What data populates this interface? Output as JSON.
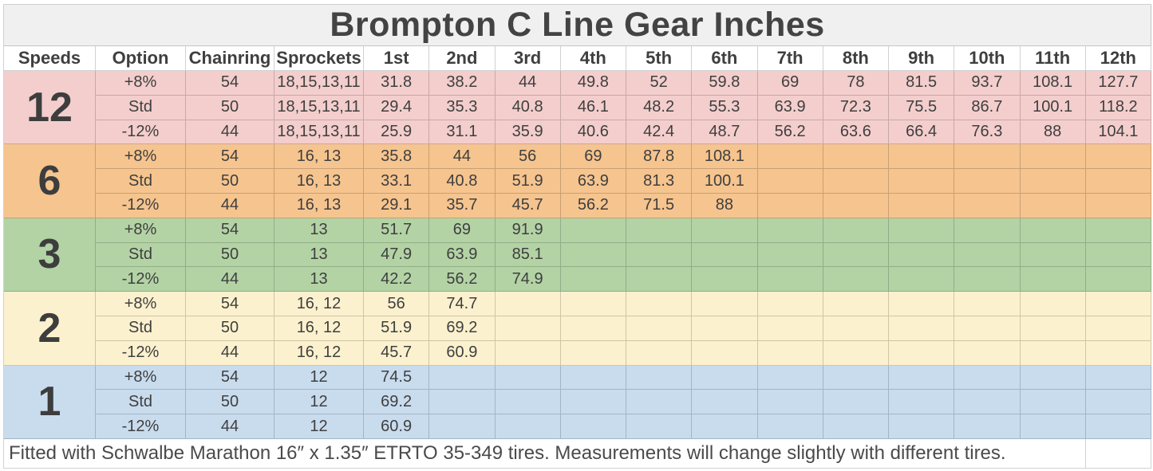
{
  "colors": {
    "title_bg": "#f0f0f0",
    "text": "#3f3f3f",
    "group_12": "#f3cecd",
    "group_6": "#f6c48e",
    "group_3": "#b3d3a5",
    "group_2": "#fcf1ce",
    "group_1": "#c9dcee"
  },
  "chart_data": {
    "type": "table",
    "title": "Brompton C Line Gear Inches",
    "footnote": "Fitted with Schwalbe Marathon 16″ x 1.35″ ETRTO 35-349 tires. Measurements will change slightly with different tires.",
    "columns": [
      "Speeds",
      "Option",
      "Chainring",
      "Sprockets",
      "1st",
      "2nd",
      "3rd",
      "4th",
      "5th",
      "6th",
      "7th",
      "8th",
      "9th",
      "10th",
      "11th",
      "12th"
    ],
    "groups": [
      {
        "speeds": "12",
        "color": "#f3cecd",
        "rows": [
          {
            "option": "+8%",
            "chainring": "54",
            "sprockets": "18,15,13,11",
            "gears": [
              "31.8",
              "38.2",
              "44",
              "49.8",
              "52",
              "59.8",
              "69",
              "78",
              "81.5",
              "93.7",
              "108.1",
              "127.7"
            ]
          },
          {
            "option": "Std",
            "chainring": "50",
            "sprockets": "18,15,13,11",
            "gears": [
              "29.4",
              "35.3",
              "40.8",
              "46.1",
              "48.2",
              "55.3",
              "63.9",
              "72.3",
              "75.5",
              "86.7",
              "100.1",
              "118.2"
            ]
          },
          {
            "option": "-12%",
            "chainring": "44",
            "sprockets": "18,15,13,11",
            "gears": [
              "25.9",
              "31.1",
              "35.9",
              "40.6",
              "42.4",
              "48.7",
              "56.2",
              "63.6",
              "66.4",
              "76.3",
              "88",
              "104.1"
            ]
          }
        ]
      },
      {
        "speeds": "6",
        "color": "#f6c48e",
        "rows": [
          {
            "option": "+8%",
            "chainring": "54",
            "sprockets": "16, 13",
            "gears": [
              "35.8",
              "44",
              "56",
              "69",
              "87.8",
              "108.1",
              "",
              "",
              "",
              "",
              "",
              ""
            ]
          },
          {
            "option": "Std",
            "chainring": "50",
            "sprockets": "16, 13",
            "gears": [
              "33.1",
              "40.8",
              "51.9",
              "63.9",
              "81.3",
              "100.1",
              "",
              "",
              "",
              "",
              "",
              ""
            ]
          },
          {
            "option": "-12%",
            "chainring": "44",
            "sprockets": "16, 13",
            "gears": [
              "29.1",
              "35.7",
              "45.7",
              "56.2",
              "71.5",
              "88",
              "",
              "",
              "",
              "",
              "",
              ""
            ]
          }
        ]
      },
      {
        "speeds": "3",
        "color": "#b3d3a5",
        "rows": [
          {
            "option": "+8%",
            "chainring": "54",
            "sprockets": "13",
            "gears": [
              "51.7",
              "69",
              "91.9",
              "",
              "",
              "",
              "",
              "",
              "",
              "",
              "",
              ""
            ]
          },
          {
            "option": "Std",
            "chainring": "50",
            "sprockets": "13",
            "gears": [
              "47.9",
              "63.9",
              "85.1",
              "",
              "",
              "",
              "",
              "",
              "",
              "",
              "",
              ""
            ]
          },
          {
            "option": "-12%",
            "chainring": "44",
            "sprockets": "13",
            "gears": [
              "42.2",
              "56.2",
              "74.9",
              "",
              "",
              "",
              "",
              "",
              "",
              "",
              "",
              ""
            ]
          }
        ]
      },
      {
        "speeds": "2",
        "color": "#fcf1ce",
        "rows": [
          {
            "option": "+8%",
            "chainring": "54",
            "sprockets": "16, 12",
            "gears": [
              "56",
              "74.7",
              "",
              "",
              "",
              "",
              "",
              "",
              "",
              "",
              "",
              ""
            ]
          },
          {
            "option": "Std",
            "chainring": "50",
            "sprockets": "16, 12",
            "gears": [
              "51.9",
              "69.2",
              "",
              "",
              "",
              "",
              "",
              "",
              "",
              "",
              "",
              ""
            ]
          },
          {
            "option": "-12%",
            "chainring": "44",
            "sprockets": "16, 12",
            "gears": [
              "45.7",
              "60.9",
              "",
              "",
              "",
              "",
              "",
              "",
              "",
              "",
              "",
              ""
            ]
          }
        ]
      },
      {
        "speeds": "1",
        "color": "#c9dcee",
        "rows": [
          {
            "option": "+8%",
            "chainring": "54",
            "sprockets": "12",
            "gears": [
              "74.5",
              "",
              "",
              "",
              "",
              "",
              "",
              "",
              "",
              "",
              "",
              ""
            ]
          },
          {
            "option": "Std",
            "chainring": "50",
            "sprockets": "12",
            "gears": [
              "69.2",
              "",
              "",
              "",
              "",
              "",
              "",
              "",
              "",
              "",
              "",
              ""
            ]
          },
          {
            "option": "-12%",
            "chainring": "44",
            "sprockets": "12",
            "gears": [
              "60.9",
              "",
              "",
              "",
              "",
              "",
              "",
              "",
              "",
              "",
              "",
              ""
            ]
          }
        ]
      }
    ]
  }
}
